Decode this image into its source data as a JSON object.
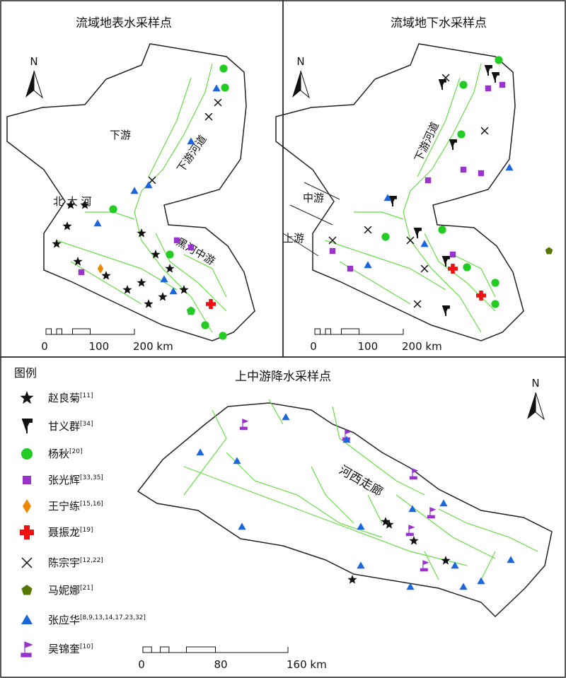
{
  "panels": [
    {
      "title": "流域地表水采样点",
      "north": "N",
      "labels": [
        "下游",
        "北 大 河",
        "下游河道",
        "黑河中游"
      ],
      "scale": [
        "0",
        "100",
        "200 km"
      ]
    },
    {
      "title": "流域地下水采样点",
      "north": "N",
      "labels": [
        "下游河道",
        "中游",
        "上游"
      ],
      "scale": [
        "0",
        "100",
        "200 km"
      ]
    },
    {
      "title": "上中游降水采样点",
      "north": "N",
      "labels": [
        "河西走廊"
      ],
      "scale": [
        "0",
        "80",
        "160 km"
      ]
    }
  ],
  "legend": {
    "title": "图例",
    "items": [
      {
        "name": "赵良菊",
        "ref": "[11]",
        "shape": "star",
        "color": "#111111"
      },
      {
        "name": "甘义群",
        "ref": "[34]",
        "shape": "pin",
        "color": "#111111"
      },
      {
        "name": "杨秋",
        "ref": "[20]",
        "shape": "circle",
        "color": "#22cc22"
      },
      {
        "name": "张光辉",
        "ref": "[33,35]",
        "shape": "square",
        "color": "#9933cc"
      },
      {
        "name": "王宁练",
        "ref": "[15,16]",
        "shape": "diamond",
        "color": "#ee8800"
      },
      {
        "name": "聂振龙",
        "ref": "[19]",
        "shape": "plus",
        "color": "#ee1111"
      },
      {
        "name": "陈宗宇",
        "ref": "[12,22]",
        "shape": "x",
        "color": "#111111"
      },
      {
        "name": "马妮娜",
        "ref": "[21]",
        "shape": "pentagon",
        "color": "#557700"
      },
      {
        "name": "张应华",
        "ref": "[8,9,13,14,17,23,32]",
        "shape": "triangle",
        "color": "#1a66dd"
      },
      {
        "name": "吴锦奎",
        "ref": "[10]",
        "shape": "flag",
        "color": "#9933cc"
      }
    ]
  }
}
